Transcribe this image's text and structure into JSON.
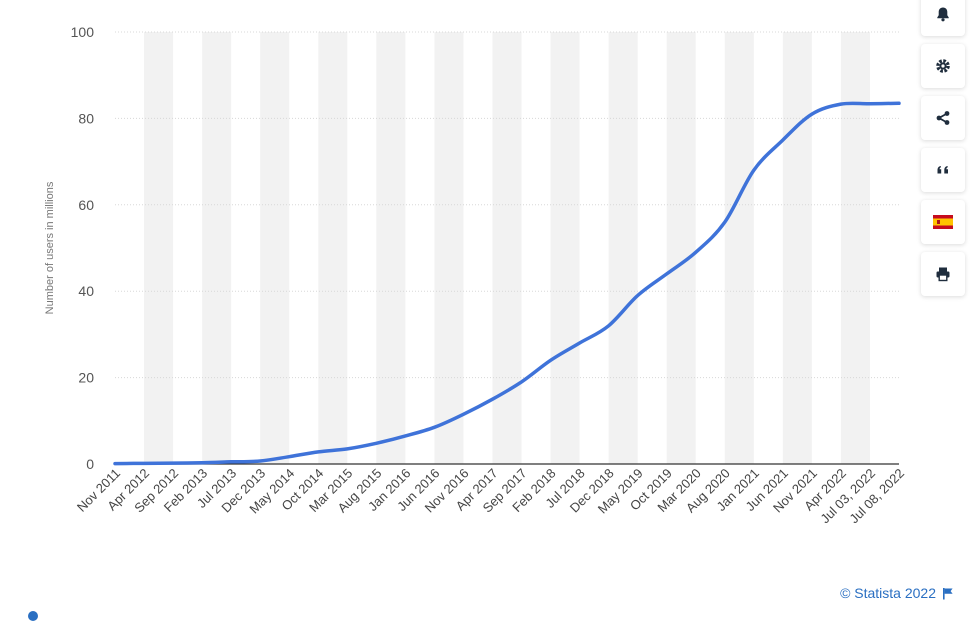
{
  "chart_data": {
    "type": "line",
    "title": "",
    "xlabel": "",
    "ylabel": "Number of users in millions",
    "ylim": [
      0,
      100
    ],
    "yticks": [
      0,
      20,
      40,
      60,
      80,
      100
    ],
    "grid": true,
    "categories": [
      "Nov 2011",
      "Apr 2012",
      "Sep 2012",
      "Feb 2013",
      "Jul 2013",
      "Dec 2013",
      "May 2014",
      "Oct 2014",
      "Mar 2015",
      "Aug 2015",
      "Jan 2016",
      "Jun 2016",
      "Nov 2016",
      "Apr 2017",
      "Sep 2017",
      "Feb 2018",
      "Jul 2018",
      "Dec 2018",
      "May 2019",
      "Oct 2019",
      "Mar 2020",
      "Aug 2020",
      "Jan 2021",
      "Jun 2021",
      "Nov 2021",
      "Apr 2022",
      "Jul 03, 2022",
      "Jul 08, 2022"
    ],
    "series": [
      {
        "color": "#3f73d9",
        "values": [
          0.1,
          0.15,
          0.2,
          0.3,
          0.5,
          0.7,
          1.7,
          2.8,
          3.5,
          4.8,
          6.5,
          8.5,
          11.5,
          15,
          19,
          24,
          28,
          32,
          39,
          44,
          49,
          56,
          68,
          75,
          81,
          83.3,
          83.4,
          83.5
        ]
      }
    ]
  },
  "toolbar": {
    "icons": [
      "bell-icon",
      "gear-icon",
      "share-icon",
      "quote-icon",
      "flag-es-icon",
      "print-icon"
    ]
  },
  "credit": {
    "text": "© Statista 2022",
    "icon": "flag-icon"
  },
  "colors": {
    "line": "#3f73d9",
    "band": "#f2f2f2",
    "grid": "#d8d8d8",
    "link": "#2a6fc2"
  }
}
